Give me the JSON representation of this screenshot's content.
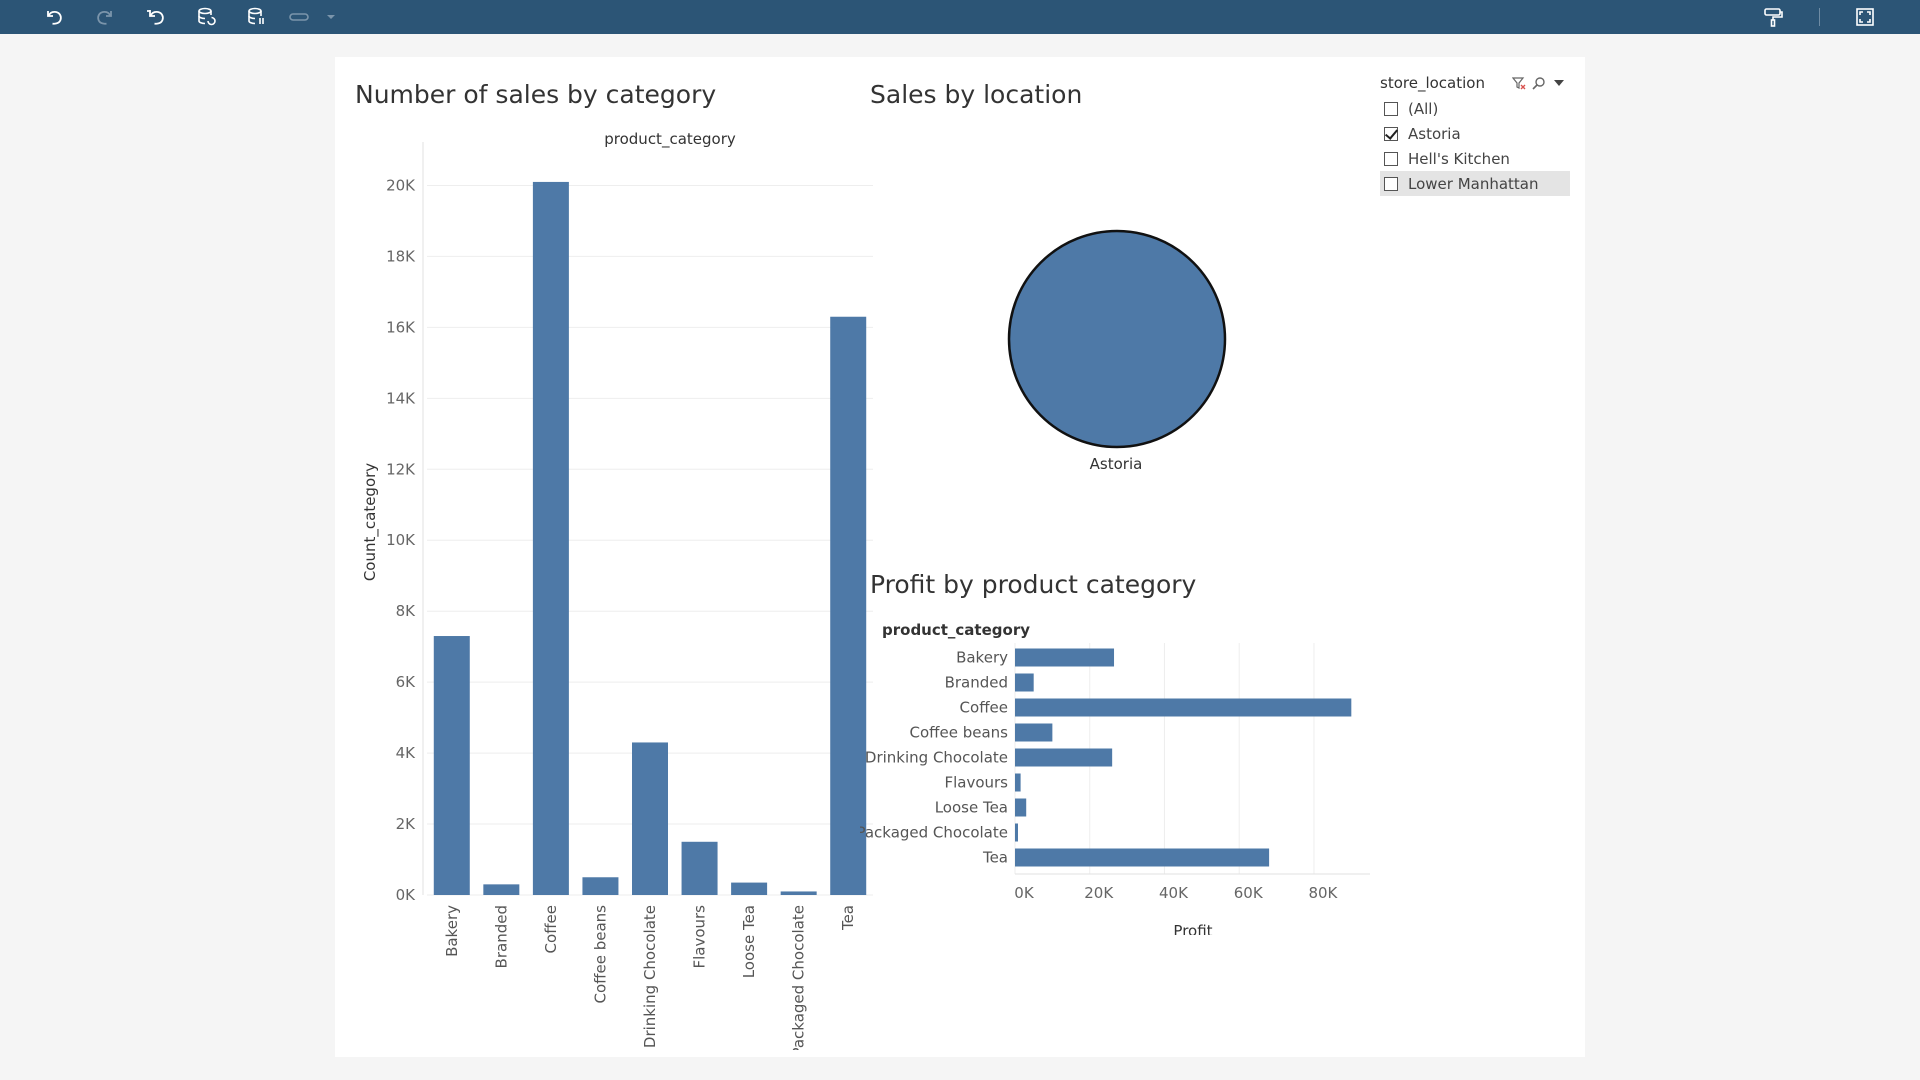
{
  "toolbar": {
    "left_icons": [
      "undo-icon",
      "redo-icon",
      "revert-icon",
      "refresh-datasource-icon",
      "pause-updates-icon",
      "redirect-icon",
      "dropdown-arrow-icon"
    ],
    "right_icons": [
      "format-painter-icon",
      "fullscreen-icon"
    ]
  },
  "dashboard": {
    "sales_by_category": {
      "title": "Number of sales by category",
      "chart_data": {
        "type": "bar",
        "title": "Number of sales by category",
        "xlabel": "product_category",
        "ylabel": "Count_category",
        "categories": [
          "Bakery",
          "Branded",
          "Coffee",
          "Coffee beans",
          "Drinking Chocolate",
          "Flavours",
          "Loose Tea",
          "Packaged Chocolate",
          "Tea"
        ],
        "values": [
          7300,
          300,
          20100,
          500,
          4300,
          1500,
          350,
          100,
          16300
        ],
        "yticks": [
          0,
          2000,
          4000,
          6000,
          8000,
          10000,
          12000,
          14000,
          16000,
          18000,
          20000
        ],
        "ytick_labels": [
          "0K",
          "2K",
          "4K",
          "6K",
          "8K",
          "10K",
          "12K",
          "14K",
          "16K",
          "18K",
          "20K"
        ],
        "ylim": [
          0,
          21000
        ],
        "color": "#4e79a7",
        "grid": true
      }
    },
    "sales_by_location": {
      "title": "Sales by location",
      "chart_data": {
        "type": "pie",
        "title": "Sales by location",
        "slices": [
          {
            "label": "Astoria",
            "value": 100
          }
        ],
        "color": "#4e79a7"
      }
    },
    "profit_by_category": {
      "title": "Profit by product category",
      "chart_data": {
        "type": "bar",
        "orientation": "horizontal",
        "title": "Profit by product category",
        "category_header": "product_category",
        "xlabel": "Profit",
        "categories": [
          "Bakery",
          "Branded",
          "Coffee",
          "Coffee beans",
          "Drinking Chocolate",
          "Flavours",
          "Loose Tea",
          "Packaged Chocolate",
          "Tea"
        ],
        "values": [
          26500,
          5000,
          90000,
          10000,
          26000,
          1500,
          3000,
          800,
          68000
        ],
        "xticks": [
          0,
          20000,
          40000,
          60000,
          80000
        ],
        "xtick_labels": [
          "0K",
          "20K",
          "40K",
          "60K",
          "80K"
        ],
        "xlim": [
          0,
          95000
        ],
        "color": "#4e79a7",
        "grid": true
      }
    }
  },
  "filter": {
    "title": "store_location",
    "items": [
      {
        "label": "(All)",
        "checked": false,
        "highlighted": false
      },
      {
        "label": "Astoria",
        "checked": true,
        "highlighted": false
      },
      {
        "label": "Hell's Kitchen",
        "checked": false,
        "highlighted": false
      },
      {
        "label": "Lower Manhattan",
        "checked": false,
        "highlighted": true
      }
    ]
  }
}
